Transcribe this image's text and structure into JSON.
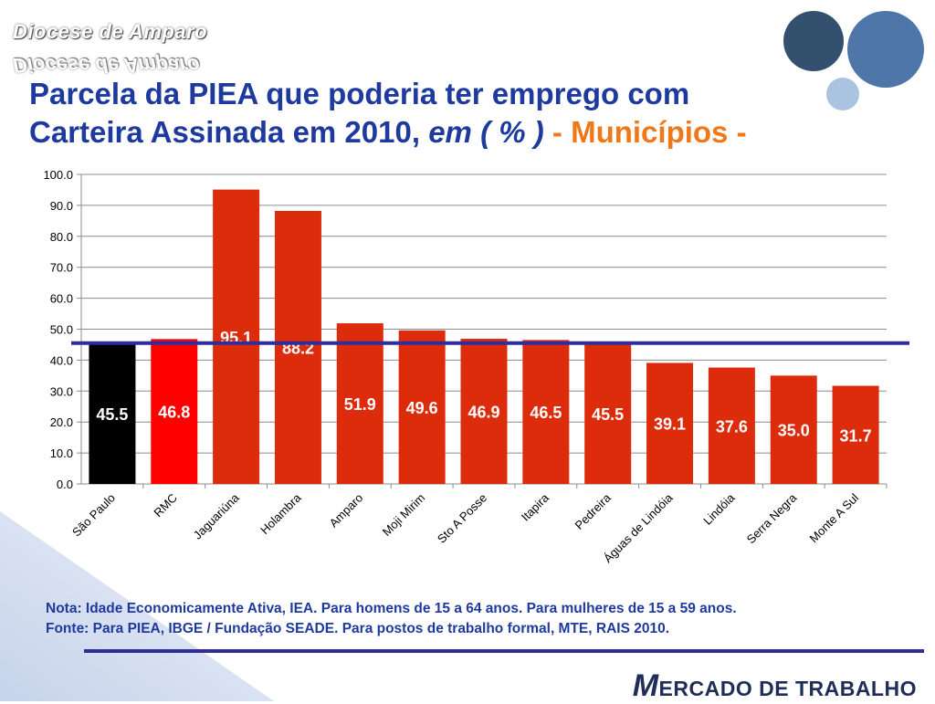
{
  "brand": {
    "name": "Diocese de Amparo"
  },
  "title": {
    "line1": "Parcela da PIEA que poderia ter emprego com",
    "line2_main": "Carteira Assinada em 2010,",
    "line2_italic": "em ( % )",
    "line2_sep": "-",
    "line2_accent": "Municípios -"
  },
  "chart_data": {
    "type": "bar",
    "categories": [
      "São Paulo",
      "RMC",
      "Jaguariúna",
      "Holambra",
      "Amparo",
      "Moji Mirim",
      "Sto A Posse",
      "Itapira",
      "Pedreira",
      "Águas de Lindóia",
      "Lindóia",
      "Serra Negra",
      "Monte A Sul"
    ],
    "values": [
      45.5,
      46.8,
      95.1,
      88.2,
      51.9,
      49.6,
      46.9,
      46.5,
      45.5,
      39.1,
      37.6,
      35.0,
      31.7
    ],
    "value_labels": [
      "45.5",
      "46.8",
      "95.1",
      "88.2",
      "51.9",
      "49.6",
      "46.9",
      "46.5",
      "45.5",
      "39.1",
      "37.6",
      "35.0",
      "31.7"
    ],
    "bar_colors": [
      "#000000",
      "#ff0000",
      "#dd2c0c",
      "#dd2c0c",
      "#dd2c0c",
      "#dd2c0c",
      "#dd2c0c",
      "#dd2c0c",
      "#dd2c0c",
      "#dd2c0c",
      "#dd2c0c",
      "#dd2c0c",
      "#dd2c0c"
    ],
    "label_colors": [
      "#ffffff",
      "#ffffff",
      "#ffffff",
      "#ffffff",
      "#ffffff",
      "#ffffff",
      "#ffffff",
      "#ffffff",
      "#ffffff",
      "#ffffff",
      "#ffffff",
      "#ffffff",
      "#ffffff"
    ],
    "y_ticks": [
      "0.0",
      "10.0",
      "20.0",
      "30.0",
      "40.0",
      "50.0",
      "60.0",
      "70.0",
      "80.0",
      "90.0",
      "100.0"
    ],
    "ylim": [
      0,
      100
    ],
    "reference_line": {
      "value": 45.5,
      "color": "#2e2d9a"
    },
    "grid": true,
    "title": "",
    "xlabel": "",
    "ylabel": ""
  },
  "note": {
    "line1": "Nota: Idade Economicamente Ativa, IEA. Para homens de 15 a 64 anos. Para mulheres de 15 a 59 anos.",
    "line2": "Fonte: Para PIEA, IBGE / Fundação SEADE. Para postos de trabalho formal, MTE, RAIS 2010."
  },
  "footer": {
    "logo_initial": "M",
    "logo_rest": "ERCADO DE TRABALHO"
  },
  "colors": {
    "title": "#1f3a9e",
    "accent": "#f07818",
    "bar": "#dd2c0c",
    "circle_dark": "#34506f",
    "circle_mid": "#4f76a8",
    "circle_light": "#a9c3e0"
  }
}
